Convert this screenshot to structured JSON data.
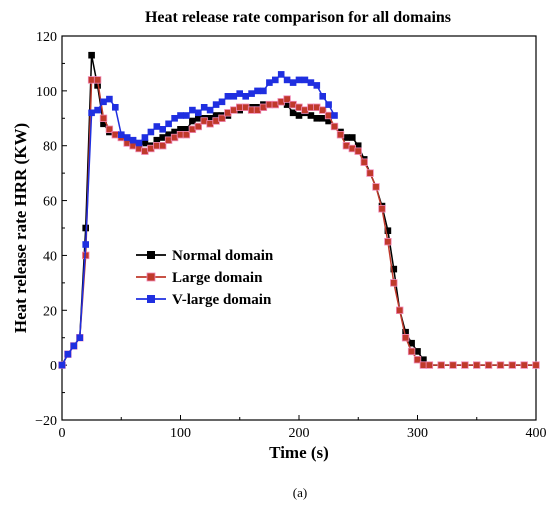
{
  "chart_data": {
    "type": "line",
    "title": "Heat release rate comparison for all domains",
    "xlabel": "Time (s)",
    "ylabel": "Heat release rate HRR (KW)",
    "xlim": [
      0,
      400
    ],
    "ylim": [
      -20,
      120
    ],
    "xticks": [
      "0",
      "100",
      "200",
      "300",
      "400"
    ],
    "yticks": [
      "−20",
      "0",
      "20",
      "40",
      "60",
      "80",
      "100",
      "120"
    ],
    "grid": false,
    "legend_position": "lower-left",
    "caption": "(a)",
    "series": [
      {
        "name": "Normal domain",
        "color": "#000000",
        "marker": "square",
        "x": [
          0,
          5,
          10,
          15,
          20,
          25,
          30,
          35,
          40,
          45,
          50,
          55,
          60,
          65,
          70,
          75,
          80,
          85,
          90,
          95,
          100,
          105,
          110,
          115,
          120,
          125,
          130,
          135,
          140,
          145,
          150,
          155,
          160,
          165,
          170,
          175,
          180,
          185,
          190,
          195,
          200,
          205,
          210,
          215,
          220,
          225,
          230,
          235,
          240,
          245,
          250,
          255,
          260,
          265,
          270,
          275,
          280,
          285,
          290,
          295,
          300,
          305,
          310,
          320,
          330,
          340,
          350,
          360,
          370,
          380,
          390,
          400
        ],
        "y": [
          0,
          4,
          7,
          10,
          50,
          113,
          102,
          88,
          85,
          84,
          83,
          82,
          81,
          80,
          81,
          80,
          82,
          83,
          84,
          85,
          86,
          86,
          89,
          90,
          90,
          90,
          91,
          91,
          91,
          93,
          93,
          94,
          94,
          94,
          95,
          95,
          95,
          96,
          95,
          92,
          91,
          92,
          91,
          90,
          90,
          89,
          87,
          85,
          83,
          83,
          80,
          75,
          70,
          65,
          58,
          49,
          35,
          20,
          12,
          8,
          5,
          2,
          0,
          0,
          0,
          0,
          0,
          0,
          0,
          0,
          0,
          0
        ]
      },
      {
        "name": "Large domain",
        "color": "#c0392b",
        "marker": "square",
        "x": [
          0,
          5,
          10,
          15,
          20,
          25,
          30,
          35,
          40,
          45,
          50,
          55,
          60,
          65,
          70,
          75,
          80,
          85,
          90,
          95,
          100,
          105,
          110,
          115,
          120,
          125,
          130,
          135,
          140,
          145,
          150,
          155,
          160,
          165,
          170,
          175,
          180,
          185,
          190,
          195,
          200,
          205,
          210,
          215,
          220,
          225,
          230,
          235,
          240,
          245,
          250,
          255,
          260,
          265,
          270,
          275,
          280,
          285,
          290,
          295,
          300,
          305,
          310,
          320,
          330,
          340,
          350,
          360,
          370,
          380,
          390,
          400
        ],
        "y": [
          0,
          4,
          7,
          10,
          40,
          104,
          104,
          90,
          86,
          84,
          83,
          81,
          80,
          79,
          78,
          79,
          80,
          80,
          82,
          83,
          84,
          84,
          86,
          87,
          89,
          88,
          89,
          90,
          92,
          93,
          94,
          94,
          93,
          93,
          94,
          95,
          95,
          96,
          97,
          95,
          94,
          93,
          94,
          94,
          93,
          91,
          87,
          84,
          80,
          79,
          78,
          74,
          70,
          65,
          57,
          45,
          30,
          20,
          10,
          5,
          2,
          0,
          0,
          0,
          0,
          0,
          0,
          0,
          0,
          0,
          0,
          0
        ]
      },
      {
        "name": "V-large domain",
        "color": "#1f2fe0",
        "marker": "square",
        "x": [
          0,
          5,
          10,
          15,
          20,
          25,
          30,
          35,
          40,
          45,
          50,
          55,
          60,
          65,
          70,
          75,
          80,
          85,
          90,
          95,
          100,
          105,
          110,
          115,
          120,
          125,
          130,
          135,
          140,
          145,
          150,
          155,
          160,
          165,
          170,
          175,
          180,
          185,
          190,
          195,
          200,
          205,
          210,
          215,
          220,
          225,
          230
        ],
        "y": [
          0,
          4,
          7,
          10,
          44,
          92,
          93,
          96,
          97,
          94,
          84,
          83,
          82,
          81,
          83,
          85,
          87,
          86,
          88,
          90,
          91,
          91,
          93,
          92,
          94,
          93,
          95,
          96,
          98,
          98,
          99,
          98,
          99,
          100,
          100,
          103,
          104,
          106,
          104,
          103,
          104,
          104,
          103,
          102,
          98,
          95,
          91
        ]
      }
    ]
  }
}
